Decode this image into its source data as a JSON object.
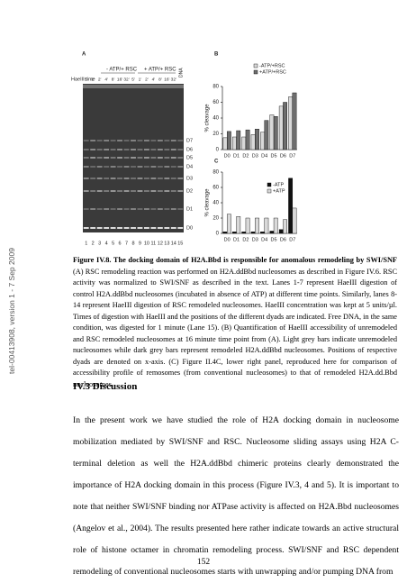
{
  "sidebar": "tel-00413908, version 1 - 7 Sep 2009",
  "figure": {
    "panel_a": {
      "label": "A",
      "condition_1": "- ATP/+ RSC",
      "condition_2": "+ ATP/+ RSC",
      "row_label": "HaeIII time",
      "times": [
        "5'",
        "1'",
        "2'",
        "4'",
        "8'",
        "16'",
        "32'",
        "5'",
        "1'",
        "2'",
        "4'",
        "8'",
        "16'",
        "32'"
      ],
      "dna_label": "DNA",
      "bands": [
        "D7",
        "D6",
        "D5",
        "D4",
        "D3",
        "D2",
        "D1",
        "D0"
      ],
      "lanes": [
        "1",
        "2",
        "3",
        "4",
        "5",
        "6",
        "7",
        "8",
        "9",
        "10",
        "11",
        "12",
        "13",
        "14",
        "15"
      ]
    },
    "panel_b_label": "B",
    "panel_c_label": "C"
  },
  "chart_data": [
    {
      "type": "bar",
      "y_label": "% cleavage",
      "categories": [
        "D0",
        "D1",
        "D2",
        "D3",
        "D4",
        "D5",
        "D6",
        "D7"
      ],
      "series": [
        {
          "name": "-ATP/+RSC",
          "color": "#d9d9d9",
          "values": [
            15,
            16,
            16,
            19,
            22,
            44,
            55,
            67
          ]
        },
        {
          "name": "+ATP/+RSC",
          "color": "#6e6e6e",
          "values": [
            23,
            24,
            25,
            26,
            37,
            42,
            60,
            72
          ]
        }
      ],
      "ylim": [
        0,
        80
      ],
      "yticks": [
        0,
        20,
        40,
        60,
        80
      ]
    },
    {
      "type": "bar",
      "y_label": "% cleavage",
      "categories": [
        "D0",
        "D1",
        "D2",
        "D3",
        "D4",
        "D5",
        "D6",
        "D7"
      ],
      "series": [
        {
          "name": "-ATP",
          "color": "#111111",
          "values": [
            2,
            2,
            2,
            2,
            2,
            3,
            5,
            72
          ]
        },
        {
          "name": "+ATP",
          "color": "#d9d9d9",
          "values": [
            25,
            22,
            20,
            20,
            20,
            20,
            18,
            33
          ]
        }
      ],
      "ylim": [
        0,
        80
      ],
      "yticks": [
        0,
        20,
        40,
        60,
        80
      ]
    }
  ],
  "caption": {
    "title": "Figure IV.8. The docking domain of H2A.Bbd is responsible for anomalous remodeling by SWI/SNF",
    "body": "(A) RSC remodeling reaction was performed on H2A.ddBbd nucleosomes as described in Figure IV.6. RSC activity was normalized to SWI/SNF as described in the text. Lanes 1-7 represent HaeIII digestion of control H2A.ddBbd nucleosomes (incubated in absence of ATP) at different time points. Similarly, lanes 8-14 represent HaeIII digestion of RSC remodeled nucleosomes. HaeIII concentration was kept at 5 units/µl. Times of digestion with HaeIII and the positions of the different dyads are indicated. Free DNA, in the same condition, was digested for 1 minute (Lane 15). (B) Quantification of HaeIII accessibility of unremodeled and RSC remodeled nucleosomes at 16 minute time point from (A). Light grey bars indicate unremodeled nucleosomes while dark grey bars represent remodeled H2A.ddBbd nucleosomes. Positions of respective dyads are denoted on x-axis. (C) Figure II.4C, lower right panel, reproduced here for comparison of accessibility profile of remosomes (from conventional nucleosomes) to that of remodeled H2A.dd.Bbd nucleosomes."
  },
  "section_heading": "IV.3 Discussion",
  "paragraph": "In the present work we have studied the role of H2A docking domain in nucleosome mobilization mediated by SWI/SNF and RSC. Nucleosome sliding assays using H2A C-terminal deletion as well the H2A.ddBbd chimeric proteins clearly demonstrated the importance of H2A docking domain in this process (Figure IV.3, 4 and 5). It is important to note that neither SWI/SNF binding nor ATPase activity is affected on H2A.Bbd nucleosomes (Angelov et al., 2004). The results presented here rather indicate towards an active structural role of histone octamer in chromatin remodeling process. SWI/SNF and RSC dependent remodeling of conventional nucleosomes starts with unwrapping and/or pumping DNA from",
  "page_number": "152"
}
